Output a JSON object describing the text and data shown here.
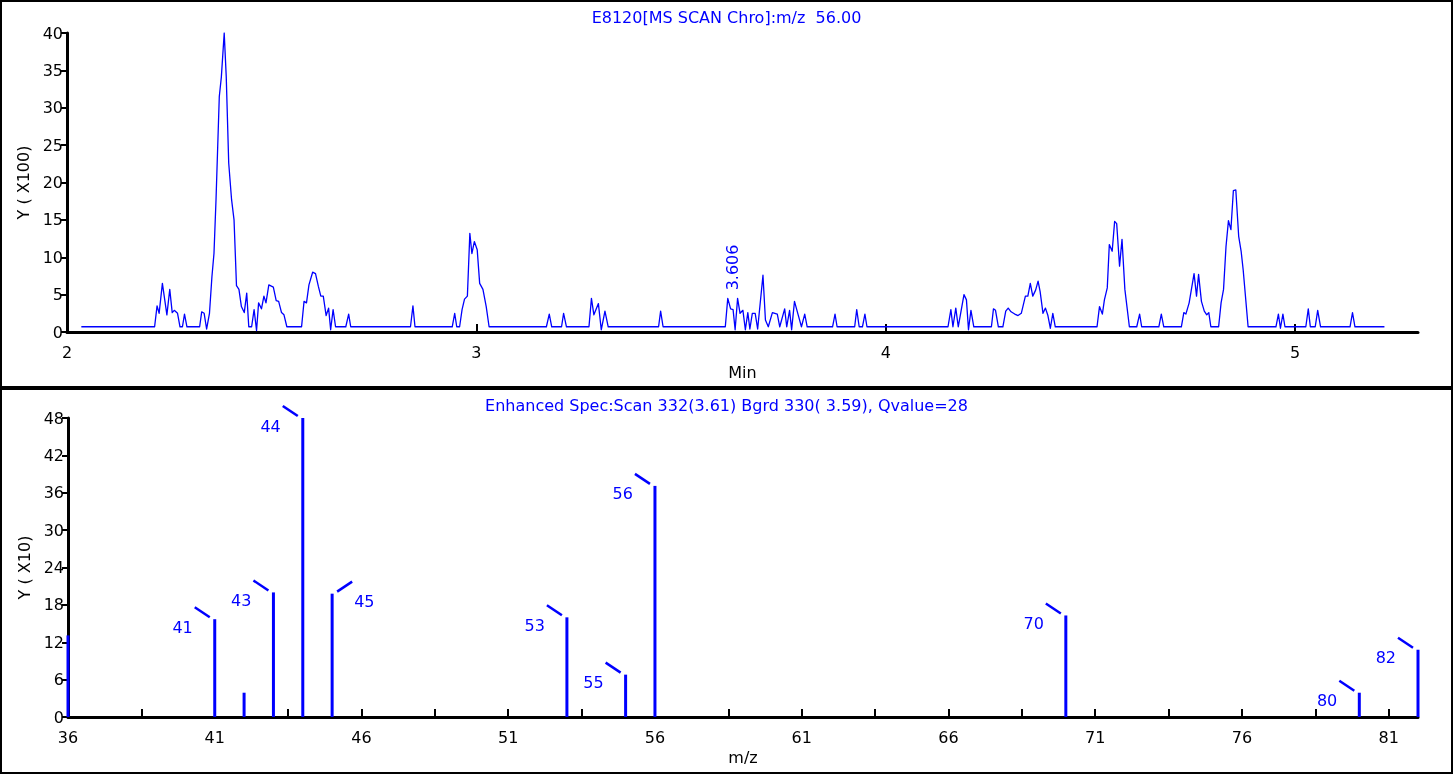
{
  "chart_data": [
    {
      "type": "line",
      "title": "E8120[MS SCAN Chro]:m/z  56.00",
      "xlabel": "Min",
      "ylabel": "Y ( X100)",
      "color": "#0000ff",
      "x": [
        2.035,
        2.214,
        2.22,
        2.225,
        2.233,
        2.244,
        2.251,
        2.257,
        2.262,
        2.27,
        2.276,
        2.282,
        2.287,
        2.293,
        2.324,
        2.329,
        2.335,
        2.341,
        2.348,
        2.354,
        2.359,
        2.364,
        2.372,
        2.377,
        2.384,
        2.389,
        2.395,
        2.402,
        2.408,
        2.414,
        2.42,
        2.426,
        2.433,
        2.439,
        2.444,
        2.451,
        2.457,
        2.463,
        2.468,
        2.475,
        2.481,
        2.486,
        2.493,
        2.504,
        2.511,
        2.517,
        2.524,
        2.53,
        2.537,
        2.573,
        2.579,
        2.585,
        2.591,
        2.6,
        2.607,
        2.614,
        2.62,
        2.626,
        2.633,
        2.639,
        2.644,
        2.65,
        2.656,
        2.681,
        2.688,
        2.693,
        2.839,
        2.845,
        2.85,
        2.941,
        2.947,
        2.952,
        2.959,
        2.965,
        2.971,
        2.978,
        2.984,
        2.989,
        2.995,
        3.002,
        3.008,
        3.016,
        3.024,
        3.031,
        3.171,
        3.178,
        3.184,
        3.208,
        3.213,
        3.22,
        3.275,
        3.281,
        3.287,
        3.298,
        3.305,
        3.314,
        3.322,
        3.445,
        3.45,
        3.456,
        3.608,
        3.614,
        3.621,
        3.627,
        3.632,
        3.638,
        3.644,
        3.651,
        3.657,
        3.663,
        3.668,
        3.674,
        3.681,
        3.687,
        3.7,
        3.706,
        3.713,
        3.723,
        3.735,
        3.741,
        3.753,
        3.758,
        3.765,
        3.77,
        3.777,
        3.786,
        3.794,
        3.802,
        3.808,
        3.87,
        3.876,
        3.881,
        3.924,
        3.929,
        3.935,
        3.943,
        3.949,
        3.954,
        4.152,
        4.159,
        4.164,
        4.171,
        4.177,
        4.191,
        4.197,
        4.202,
        4.208,
        4.215,
        4.258,
        4.263,
        4.268,
        4.275,
        4.286,
        4.293,
        4.299,
        4.306,
        4.315,
        4.323,
        4.331,
        4.341,
        4.347,
        4.353,
        4.359,
        4.366,
        4.372,
        4.377,
        4.384,
        4.39,
        4.396,
        4.402,
        4.408,
        4.414,
        4.516,
        4.522,
        4.529,
        4.534,
        4.541,
        4.546,
        4.553,
        4.559,
        4.564,
        4.571,
        4.577,
        4.584,
        4.595,
        4.613,
        4.62,
        4.625,
        4.667,
        4.673,
        4.679,
        4.722,
        4.728,
        4.733,
        4.741,
        4.753,
        4.759,
        4.764,
        4.771,
        4.778,
        4.784,
        4.789,
        4.794,
        4.813,
        4.819,
        4.825,
        4.831,
        4.837,
        4.843,
        4.849,
        4.855,
        4.862,
        4.868,
        4.873,
        4.885,
        4.953,
        4.959,
        4.964,
        4.97,
        4.975,
        5.026,
        5.032,
        5.037,
        5.049,
        5.055,
        5.062,
        5.134,
        5.14,
        5.146,
        5.218
      ],
      "values": [
        0.7,
        0.7,
        3.5,
        2.5,
        6.5,
        2.3,
        5.7,
        2.6,
        2.9,
        2.5,
        0.7,
        0.7,
        2.4,
        0.7,
        0.7,
        2.7,
        2.5,
        0.4,
        2.5,
        7.4,
        10.5,
        17.7,
        31.5,
        34.1,
        40,
        34.1,
        22.6,
        17.7,
        15,
        6.2,
        5.7,
        3.4,
        2.6,
        5.2,
        0.7,
        0.7,
        3,
        0.2,
        3.9,
        3.1,
        4.8,
        3.9,
        6.3,
        6,
        4.2,
        4.1,
        2.6,
        2.3,
        0.7,
        0.7,
        4.1,
        3.9,
        6.3,
        8,
        7.8,
        6.1,
        4.8,
        4.8,
        2.2,
        3.2,
        0.3,
        3,
        0.7,
        0.7,
        2.4,
        0.7,
        0.7,
        3.5,
        0.7,
        0.7,
        2.5,
        0.7,
        0.7,
        3,
        4.4,
        4.8,
        13.2,
        10.5,
        12.1,
        11,
        6.5,
        5.7,
        3.4,
        0.7,
        0.7,
        2.4,
        0.7,
        0.7,
        2.5,
        0.7,
        0.7,
        4.5,
        2.3,
        3.8,
        0.3,
        2.8,
        0.7,
        0.7,
        2.8,
        0.7,
        0.7,
        4.5,
        3.1,
        3,
        0.3,
        4.5,
        2.5,
        2.9,
        0.3,
        2.6,
        0.4,
        2.5,
        2.5,
        0.4,
        7.6,
        1.6,
        0.7,
        2.6,
        2.4,
        0.7,
        3.1,
        0.7,
        2.9,
        0.3,
        4.1,
        2.3,
        0.7,
        2.4,
        0.7,
        0.7,
        2.4,
        0.7,
        0.7,
        3,
        0.7,
        0.7,
        2.4,
        0.7,
        0.7,
        3,
        0.7,
        3.2,
        0.7,
        5,
        4.3,
        0.3,
        2.9,
        0.7,
        0.7,
        3.1,
        2.9,
        0.7,
        0.7,
        2.8,
        3.2,
        2.7,
        2.4,
        2.2,
        2.5,
        4.8,
        4.8,
        6.5,
        4.8,
        5.6,
        6.8,
        5.4,
        2.5,
        3.2,
        2.2,
        0.5,
        2.5,
        0.7,
        0.7,
        3.4,
        2.4,
        4.3,
        5.9,
        11.7,
        10.8,
        14.8,
        14.5,
        8.8,
        12.4,
        5.7,
        0.7,
        0.7,
        2.4,
        0.7,
        0.7,
        2.4,
        0.7,
        0.7,
        2.6,
        2.4,
        3.9,
        7.8,
        4.8,
        7.7,
        4.1,
        2.8,
        2.3,
        2.6,
        0.7,
        0.7,
        3.9,
        5.7,
        11.4,
        14.9,
        13.7,
        18.9,
        19,
        12.8,
        10.8,
        8.3,
        0.7,
        0.7,
        2.4,
        0.5,
        2.4,
        0.7,
        0.7,
        3.1,
        0.7,
        0.7,
        2.9,
        0.7,
        0.7,
        2.6,
        0.7,
        0.7
      ],
      "xlim": [
        2,
        5.3
      ],
      "xticks": [
        2,
        3,
        4,
        5
      ],
      "ylim": [
        0,
        40
      ],
      "yticks": [
        0,
        5,
        10,
        15,
        20,
        25,
        30,
        35,
        40
      ],
      "annotations": [
        {
          "text": "3.606",
          "x": 3.606,
          "y": 4.5
        }
      ]
    },
    {
      "type": "bar",
      "title": "Enhanced Spec:Scan 332(3.61) Bgrd 330( 3.59), Qvalue=28",
      "xlabel": "m/z",
      "ylabel": "Y ( X10)",
      "color": "#0000ff",
      "x": [
        36,
        41,
        42,
        43,
        44,
        45,
        53,
        55,
        56,
        70,
        80,
        82
      ],
      "values": [
        13.1,
        15.7,
        3.9,
        20,
        48,
        19.8,
        16,
        6.8,
        37.1,
        16.3,
        3.9,
        10.8
      ],
      "xlim": [
        36,
        82
      ],
      "xticks": [
        36,
        {
          "value": 38.5,
          "label": null
        },
        41,
        {
          "value": 43.5,
          "label": null
        },
        46,
        {
          "value": 48.5,
          "label": null
        },
        51,
        {
          "value": 53.5,
          "label": null
        },
        56,
        {
          "value": 58.5,
          "label": null
        },
        61,
        {
          "value": 63.5,
          "label": null
        },
        66,
        {
          "value": 68.5,
          "label": null
        },
        71,
        {
          "value": 73.5,
          "label": null
        },
        76,
        {
          "value": 78.5,
          "label": null
        },
        81
      ],
      "ylim": [
        0,
        48
      ],
      "yticks": [
        0,
        6,
        12,
        18,
        24,
        30,
        36,
        42,
        48
      ],
      "annotations": [
        {
          "text": "41",
          "x": 41,
          "y": 15.7
        },
        {
          "text": "43",
          "x": 43,
          "y": 20
        },
        {
          "text": "44",
          "x": 44,
          "y": 48
        },
        {
          "text": "45",
          "x": 45,
          "y": 19.8
        },
        {
          "text": "53",
          "x": 53,
          "y": 16
        },
        {
          "text": "55",
          "x": 55,
          "y": 6.8
        },
        {
          "text": "56",
          "x": 56,
          "y": 37.1
        },
        {
          "text": "70",
          "x": 70,
          "y": 16.3
        },
        {
          "text": "80",
          "x": 80,
          "y": 3.9
        },
        {
          "text": "82",
          "x": 82,
          "y": 10.8
        }
      ]
    }
  ]
}
